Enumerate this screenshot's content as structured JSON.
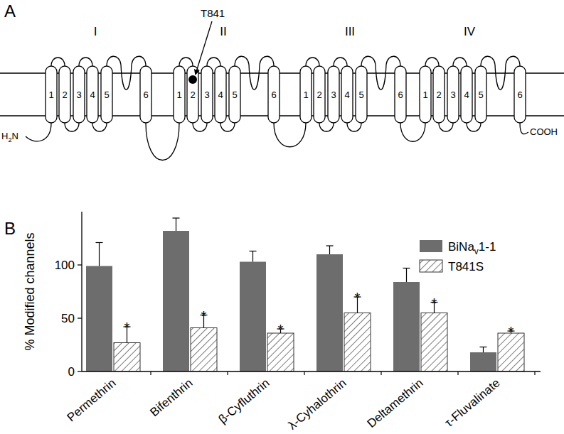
{
  "panel_a": {
    "panel_label": "A",
    "domains": [
      {
        "label": "I",
        "segments": [
          "1",
          "2",
          "3",
          "4",
          "5",
          "6"
        ]
      },
      {
        "label": "II",
        "segments": [
          "1",
          "2",
          "3",
          "4",
          "5",
          "6"
        ]
      },
      {
        "label": "III",
        "segments": [
          "1",
          "2",
          "3",
          "4",
          "5",
          "6"
        ]
      },
      {
        "label": "IV",
        "segments": [
          "1",
          "2",
          "3",
          "4",
          "5",
          "6"
        ]
      }
    ],
    "residue": "T841",
    "n_terminus": "H2N",
    "c_terminus": "COOH"
  },
  "chart_data": {
    "panel_label": "B",
    "type": "bar",
    "y_label": "% Modified channels",
    "categories": [
      "Permethrin",
      "Bifenthrin",
      "β-Cyfluthrin",
      "λ-Cyhalothrin",
      "Deltamethrin",
      "τ-Fluvalinate"
    ],
    "series": [
      {
        "name": "BiNav1-1",
        "color": "#6d6d6d",
        "values": [
          99,
          132,
          103,
          110,
          84,
          18
        ],
        "errors": [
          22,
          12,
          10,
          8,
          13,
          5
        ]
      },
      {
        "name": "T841S",
        "color": "#333333",
        "values": [
          27,
          41,
          36,
          55,
          55,
          36
        ],
        "errors": [
          15,
          12,
          4,
          15,
          10,
          2
        ],
        "significance": [
          "*",
          "*",
          "*",
          "*",
          "*",
          "*"
        ]
      }
    ],
    "ylim": [
      0,
      150
    ],
    "yticks": [
      0,
      50,
      100
    ],
    "legend": "upper-right",
    "grid": false
  }
}
